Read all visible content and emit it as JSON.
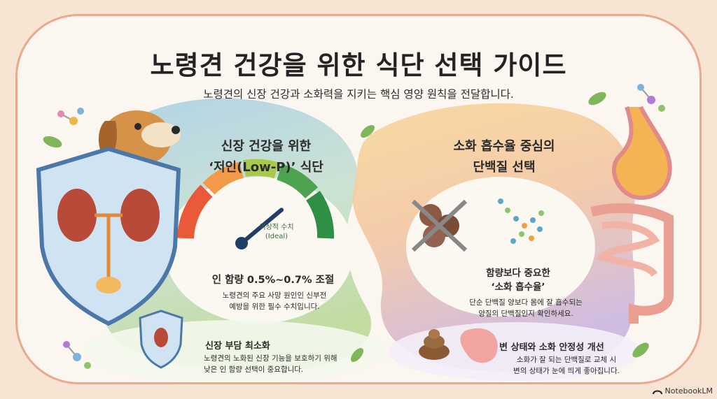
{
  "title": "노령견 건강을 위한 식단 선택 가이드",
  "subtitle": "노령견의 신장 건강과 소화력을 지키는 핵심 영양 원칙을 전달합니다.",
  "left_section": {
    "heading_line1": "신장 건강을 위한",
    "heading_line2": "‘저인(Low-P)’ 식단",
    "gauge_label_line1": "이상적 수치",
    "gauge_label_line2": "(Ideal)",
    "gauge_level": 0.78,
    "phosphorus_text": "인 함량 0.5%~0.7% 조절",
    "phosphorus_desc_line1": "노령견의 주요 사망 원인인 신부전",
    "phosphorus_desc_line2": "예방을 위한 필수 수치입니다.",
    "kidney_title": "신장 부담 최소화",
    "kidney_desc_line1": "노령견의 노화된 신장 기능을 보호하기 위해",
    "kidney_desc_line2": "낮은 인 함량 선택이 중요합니다."
  },
  "right_section": {
    "heading_line1": "소화 흡수율 중심의",
    "heading_line2": "단백질 선택",
    "absorb_line1": "함량보다 중요한",
    "absorb_line2": "‘소화 흡수율’",
    "absorb_desc_line1": "단순 단백질 양보다 몸에 잘 흡수되는",
    "absorb_desc_line2": "양질의 단백질인지 확인하세요.",
    "stool_title": "변 상태와 소화 안정성 개선",
    "stool_desc_line1": "소화가 잘 되는 단백질로 교체 시",
    "stool_desc_line2": "변의 상태가 눈에 띄게 좋아집니다."
  },
  "brand": "NotebookLM",
  "icons": [
    "dog-icon",
    "shield-kidney-icon",
    "gauge-icon",
    "small-shield-kidney-icon",
    "crossed-kibble-icon",
    "amino-chain-icon",
    "poop-icon",
    "stomach-icon",
    "digestive-tract-icon",
    "leaf-icon",
    "molecule-icon"
  ],
  "colors": {
    "left_blue": "#a9cfe8",
    "left_green": "#bcd99a",
    "right_orange": "#f5c98a",
    "right_purple": "#cbb6e0",
    "gauge_red": "#e9593a",
    "gauge_green": "#2f8f45",
    "needle": "#1f3f66"
  }
}
